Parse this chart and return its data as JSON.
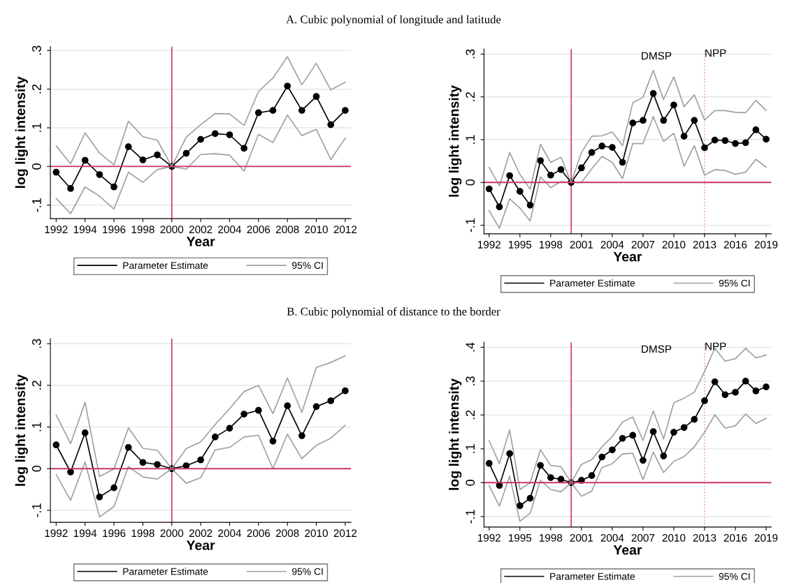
{
  "chart_data": [
    {
      "type": "line",
      "title": "A. Cubic polynomial of longitude and latitude",
      "xlabel": "Year",
      "ylabel": "log light intensity",
      "x": [
        1992,
        1993,
        1994,
        1995,
        1996,
        1997,
        1998,
        1999,
        2000,
        2001,
        2002,
        2003,
        2004,
        2005,
        2006,
        2007,
        2008,
        2009,
        2010,
        2011,
        2012
      ],
      "series": [
        {
          "name": "Parameter Estimate",
          "color": "#000000",
          "marker": "circle",
          "values": [
            -0.015,
            -0.057,
            0.016,
            -0.021,
            -0.053,
            0.051,
            0.017,
            0.03,
            0,
            0.034,
            0.07,
            0.085,
            0.082,
            0.047,
            0.139,
            0.145,
            0.208,
            0.145,
            0.181,
            0.108,
            0.145
          ]
        },
        {
          "name": "95% CI",
          "color": "#a0a0a0",
          "marker": "none",
          "values": [
            0.053,
            0.007,
            0.087,
            0.035,
            0.004,
            0.117,
            0.077,
            0.068,
            0,
            0.076,
            0.108,
            0.137,
            0.136,
            0.106,
            0.194,
            0.229,
            0.284,
            0.211,
            0.267,
            0.198,
            0.218
          ]
        },
        {
          "color": "#a0a0a0",
          "marker": "none",
          "values": [
            -0.083,
            -0.122,
            -0.053,
            -0.077,
            -0.11,
            -0.015,
            -0.041,
            -0.008,
            0,
            -0.007,
            0.031,
            0.033,
            0.029,
            -0.012,
            0.083,
            0.062,
            0.133,
            0.08,
            0.096,
            0.018,
            0.073
          ]
        }
      ],
      "xlim": [
        1991.6,
        2012.4
      ],
      "xticks": [
        1992,
        1994,
        1996,
        1998,
        2000,
        2002,
        2004,
        2006,
        2008,
        2010,
        2012
      ],
      "ylim": [
        -0.135,
        0.31
      ],
      "yticks": [
        {
          "value": -0.1,
          "label": "-.1"
        },
        0,
        {
          "value": 0.1,
          "label": ".1"
        },
        {
          "value": 0.2,
          "label": ".2"
        },
        {
          "value": 0.3,
          "label": ".3"
        }
      ],
      "ref_lines": [
        {
          "axis": "y",
          "value": 0,
          "color": "#cc3366",
          "line_style": "solid"
        },
        {
          "axis": "x",
          "value": 2000,
          "color": "#cc3366",
          "line_style": "solid"
        }
      ],
      "grid": "y",
      "legend": "bottom"
    },
    {
      "type": "line",
      "xlabel": "Year",
      "ylabel": "log light intensity",
      "x": [
        1992,
        1993,
        1994,
        1995,
        1996,
        1997,
        1998,
        1999,
        2000,
        2001,
        2002,
        2003,
        2004,
        2005,
        2006,
        2007,
        2008,
        2009,
        2010,
        2011,
        2012,
        2013,
        2014,
        2015,
        2016,
        2017,
        2018,
        2019
      ],
      "series": [
        {
          "name": "Parameter Estimate",
          "color": "#000000",
          "marker": "circle",
          "values": [
            -0.015,
            -0.057,
            0.016,
            -0.021,
            -0.053,
            0.051,
            0.017,
            0.03,
            0,
            0.034,
            0.07,
            0.085,
            0.082,
            0.047,
            0.139,
            0.145,
            0.208,
            0.145,
            0.181,
            0.108,
            0.145,
            0.081,
            0.099,
            0.098,
            0.091,
            0.093,
            0.123,
            0.101
          ]
        },
        {
          "name": "95% CI",
          "color": "#a0a0a0",
          "marker": "none",
          "values": [
            0.035,
            -0.008,
            0.07,
            0.019,
            -0.016,
            0.089,
            0.047,
            0.059,
            0,
            0.07,
            0.108,
            0.109,
            0.118,
            0.086,
            0.186,
            0.199,
            0.262,
            0.194,
            0.247,
            0.177,
            0.205,
            0.146,
            0.168,
            0.168,
            0.164,
            0.163,
            0.192,
            0.168
          ]
        },
        {
          "color": "#a0a0a0",
          "marker": "none",
          "values": [
            -0.066,
            -0.107,
            -0.038,
            -0.06,
            -0.09,
            0.013,
            -0.012,
            0.002,
            0,
            0,
            0.032,
            0.061,
            0.047,
            0.009,
            0.091,
            0.091,
            0.154,
            0.096,
            0.115,
            0.038,
            0.086,
            0.017,
            0.03,
            0.028,
            0.019,
            0.024,
            0.054,
            0.036
          ]
        }
      ],
      "xlim": [
        1991.5,
        2019.5
      ],
      "xticks": [
        1992,
        1995,
        1998,
        2001,
        2004,
        2007,
        2010,
        2013,
        2016,
        2019
      ],
      "ylim": [
        -0.12,
        0.312
      ],
      "yticks": [
        {
          "value": -0.1,
          "label": "-.1"
        },
        0,
        {
          "value": 0.1,
          "label": ".1"
        },
        {
          "value": 0.2,
          "label": ".2"
        },
        {
          "value": 0.3,
          "label": ".3"
        }
      ],
      "ref_lines": [
        {
          "axis": "y",
          "value": 0,
          "color": "#cc3366",
          "line_style": "solid"
        },
        {
          "axis": "x",
          "value": 2000,
          "color": "#cc3366",
          "line_style": "solid"
        },
        {
          "axis": "x",
          "value": 2013,
          "label": "NPP",
          "color": "#f09ab0",
          "line_style": "dotted"
        }
      ],
      "annotations": [
        "DMSP"
      ],
      "grid": "y",
      "legend": "bottom"
    },
    {
      "type": "line",
      "title": "B. Cubic polynomial of distance to the border",
      "xlabel": "Year",
      "ylabel": "log light intensity",
      "x": [
        1992,
        1993,
        1994,
        1995,
        1996,
        1997,
        1998,
        1999,
        2000,
        2001,
        2002,
        2003,
        2004,
        2005,
        2006,
        2007,
        2008,
        2009,
        2010,
        2011,
        2012
      ],
      "series": [
        {
          "name": "Parameter Estimate",
          "color": "#000000",
          "marker": "circle",
          "values": [
            0.057,
            -0.008,
            0.086,
            -0.068,
            -0.046,
            0.051,
            0.015,
            0.01,
            0,
            0.007,
            0.021,
            0.076,
            0.097,
            0.131,
            0.14,
            0.066,
            0.151,
            0.079,
            0.149,
            0.163,
            0.187
          ]
        },
        {
          "name": "95% CI",
          "color": "#a0a0a0",
          "marker": "none",
          "values": [
            0.129,
            0.06,
            0.159,
            -0.019,
            -0.001,
            0.098,
            0.049,
            0.044,
            0,
            0.048,
            0.064,
            0.106,
            0.144,
            0.185,
            0.2,
            0.132,
            0.218,
            0.135,
            0.243,
            0.255,
            0.271
          ]
        },
        {
          "color": "#a0a0a0",
          "marker": "none",
          "values": [
            -0.014,
            -0.076,
            0.016,
            -0.116,
            -0.091,
            0.005,
            -0.02,
            -0.025,
            0,
            -0.035,
            -0.022,
            0.045,
            0.051,
            0.076,
            0.08,
            0.0,
            0.083,
            0.024,
            0.056,
            0.073,
            0.104
          ]
        }
      ],
      "xlim": [
        1991.6,
        2012.4
      ],
      "xticks": [
        1992,
        1994,
        1996,
        1998,
        2000,
        2002,
        2004,
        2006,
        2008,
        2010,
        2012
      ],
      "ylim": [
        -0.129,
        0.312
      ],
      "yticks": [
        {
          "value": -0.1,
          "label": "-.1"
        },
        0,
        {
          "value": 0.1,
          "label": ".1"
        },
        {
          "value": 0.2,
          "label": ".2"
        },
        {
          "value": 0.3,
          "label": ".3"
        }
      ],
      "ref_lines": [
        {
          "axis": "y",
          "value": 0,
          "color": "#cc3366",
          "line_style": "solid"
        },
        {
          "axis": "x",
          "value": 2000,
          "color": "#cc3366",
          "line_style": "solid"
        }
      ],
      "grid": "y",
      "legend": "bottom"
    },
    {
      "type": "line",
      "xlabel": "Year",
      "ylabel": "log light intensity",
      "x": [
        1992,
        1993,
        1994,
        1995,
        1996,
        1997,
        1998,
        1999,
        2000,
        2001,
        2002,
        2003,
        2004,
        2005,
        2006,
        2007,
        2008,
        2009,
        2010,
        2011,
        2012,
        2013,
        2014,
        2015,
        2016,
        2017,
        2018,
        2019
      ],
      "series": [
        {
          "name": "Parameter Estimate",
          "color": "#000000",
          "marker": "circle",
          "values": [
            0.057,
            -0.008,
            0.086,
            -0.068,
            -0.046,
            0.051,
            0.015,
            0.01,
            0,
            0.007,
            0.021,
            0.076,
            0.097,
            0.131,
            0.14,
            0.066,
            0.151,
            0.079,
            0.149,
            0.163,
            0.187,
            0.242,
            0.298,
            0.26,
            0.267,
            0.3,
            0.271,
            0.283
          ]
        },
        {
          "name": "95% CI",
          "color": "#a0a0a0",
          "marker": "none",
          "values": [
            0.124,
            0.056,
            0.156,
            -0.02,
            0,
            0.097,
            0.051,
            0.047,
            0,
            0.054,
            0.068,
            0.106,
            0.136,
            0.179,
            0.194,
            0.125,
            0.212,
            0.129,
            0.236,
            0.25,
            0.267,
            0.329,
            0.397,
            0.359,
            0.366,
            0.397,
            0.369,
            0.377
          ]
        },
        {
          "color": "#a0a0a0",
          "marker": "none",
          "values": [
            -0.009,
            -0.069,
            0.019,
            -0.114,
            -0.09,
            0.007,
            -0.02,
            -0.027,
            0,
            -0.04,
            -0.025,
            0.045,
            0.056,
            0.085,
            0.087,
            0.009,
            0.09,
            0.03,
            0.063,
            0.077,
            0.106,
            0.149,
            0.201,
            0.161,
            0.168,
            0.203,
            0.175,
            0.19
          ]
        }
      ],
      "xlim": [
        1991.5,
        2019.5
      ],
      "xticks": [
        1992,
        1995,
        1998,
        2001,
        2004,
        2007,
        2010,
        2013,
        2016,
        2019
      ],
      "ylim": [
        -0.131,
        0.415
      ],
      "yticks": [
        {
          "value": -0.1,
          "label": "-.1"
        },
        0,
        {
          "value": 0.1,
          "label": ".1"
        },
        {
          "value": 0.2,
          "label": ".2"
        },
        {
          "value": 0.3,
          "label": ".3"
        },
        {
          "value": 0.4,
          "label": ".4"
        }
      ],
      "ref_lines": [
        {
          "axis": "y",
          "value": 0,
          "color": "#cc3366",
          "line_style": "solid"
        },
        {
          "axis": "x",
          "value": 2000,
          "color": "#cc3366",
          "line_style": "solid"
        },
        {
          "axis": "x",
          "value": 2013,
          "label": "NPP",
          "color": "#f09ab0",
          "line_style": "dotted"
        }
      ],
      "annotations": [
        "DMSP"
      ],
      "grid": "y",
      "legend": "bottom"
    }
  ]
}
